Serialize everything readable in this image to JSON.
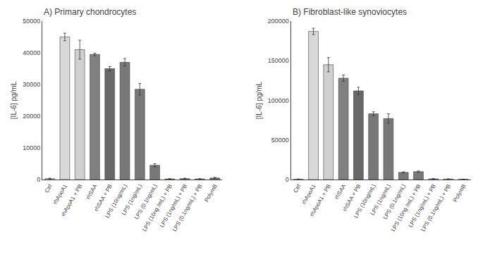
{
  "chart_data": [
    {
      "type": "bar",
      "title": "A) Primary chondrocytes",
      "ylabel": "[IL-6] pg/mL",
      "categories": [
        "Ctrl",
        "rhApoA1",
        "rhApoA1 + PB",
        "rhSAA",
        "rhSAA + PB",
        "LPS (10ng/mL)",
        "LPS (1ng/mL)",
        "LPS (0.1ng/mL)",
        "LPS (10ng /mL) + PB",
        "LPS (1ng/mL) + PB",
        "LPS (0.1ng/mL) + PB",
        "PolymB"
      ],
      "values": [
        300,
        45000,
        41000,
        39500,
        35000,
        37000,
        28500,
        4500,
        200,
        300,
        200,
        500
      ],
      "errors": [
        150,
        1200,
        3000,
        400,
        700,
        1200,
        1800,
        500,
        100,
        150,
        100,
        200
      ],
      "colors": [
        "#c8c8c8",
        "#d8d8d8",
        "#d0d0d0",
        "#808080",
        "#686868",
        "#787878",
        "#787878",
        "#787878",
        "#787878",
        "#787878",
        "#787878",
        "#787878"
      ],
      "ylim": [
        0,
        50000
      ],
      "yticks": [
        0,
        10000,
        20000,
        30000,
        40000,
        50000
      ],
      "grid": false
    },
    {
      "type": "bar",
      "title": "B) Fibroblast-like synoviocytes",
      "ylabel": "[IL-6] pg/mL",
      "categories": [
        "Ctrl",
        "rhApoA1",
        "rhApoA1 + PB",
        "rhSAA",
        "rhSAA + PB",
        "LPS (10ng/mL)",
        "LPS (1ng/mL)",
        "LPS (0.1ng/mL)",
        "LPS (10ng /mL) + PB",
        "LPS (1ng/mL) + PB",
        "LPS (0.1ng/mL) + PB",
        "PolymB"
      ],
      "values": [
        500,
        187000,
        145000,
        128000,
        112000,
        83000,
        77000,
        9000,
        10000,
        900,
        600,
        400
      ],
      "errors": [
        200,
        4000,
        9000,
        4000,
        4500,
        2500,
        6000,
        800,
        800,
        400,
        300,
        200
      ],
      "colors": [
        "#c8c8c8",
        "#d8d8d8",
        "#d0d0d0",
        "#808080",
        "#686868",
        "#787878",
        "#787878",
        "#787878",
        "#787878",
        "#787878",
        "#787878",
        "#787878"
      ],
      "ylim": [
        0,
        200000
      ],
      "yticks": [
        0,
        50000,
        100000,
        150000,
        200000
      ],
      "grid": false
    }
  ]
}
